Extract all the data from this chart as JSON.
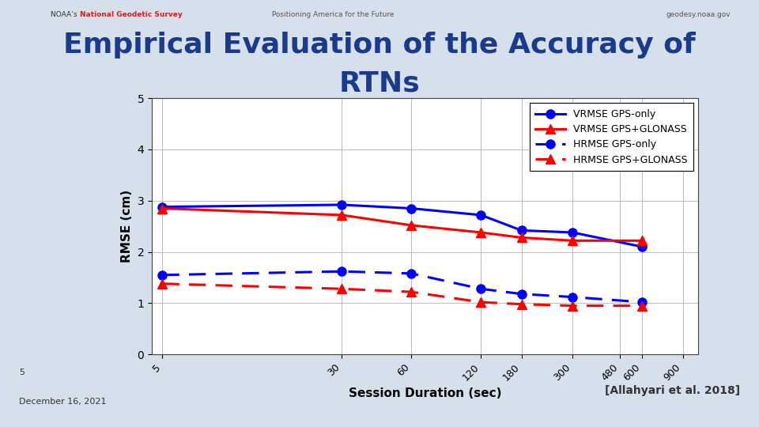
{
  "title_line1": "Empirical Evaluation of the Accuracy of",
  "title_line2": "RTNs",
  "title_color": "#1a3a8c",
  "xlabel": "Session Duration (sec)",
  "ylabel": "RMSE (cm)",
  "x_values": [
    5,
    30,
    60,
    120,
    180,
    300,
    600
  ],
  "x_ticks": [
    5,
    30,
    60,
    120,
    180,
    300,
    480,
    600,
    900
  ],
  "x_tick_labels": [
    "5",
    "30",
    "60",
    "120",
    "180",
    "300",
    "480",
    "600",
    "900"
  ],
  "ylim": [
    0,
    5
  ],
  "y_ticks": [
    0,
    1,
    2,
    3,
    4,
    5
  ],
  "vrmse_gps": [
    2.88,
    2.92,
    2.85,
    2.72,
    2.42,
    2.38,
    2.1
  ],
  "vrmse_gps_glonass": [
    2.85,
    2.72,
    2.52,
    2.38,
    2.28,
    2.22,
    2.22
  ],
  "hrmse_gps": [
    1.55,
    1.62,
    1.58,
    1.28,
    1.18,
    1.12,
    1.02
  ],
  "hrmse_gps_glonass": [
    1.38,
    1.28,
    1.22,
    1.02,
    0.98,
    0.95,
    0.95
  ],
  "blue_color": "#0000ff",
  "red_color": "#ff0000",
  "bg_color": "#d6e0ec",
  "plot_bg": "#ffffff",
  "grid_color": "#b0b0b0",
  "legend_labels": [
    "VRMSE GPS-only",
    "VRMSE GPS+GLONASS",
    "HRMSE GPS-only",
    "HRMSE GPS+GLONASS"
  ]
}
